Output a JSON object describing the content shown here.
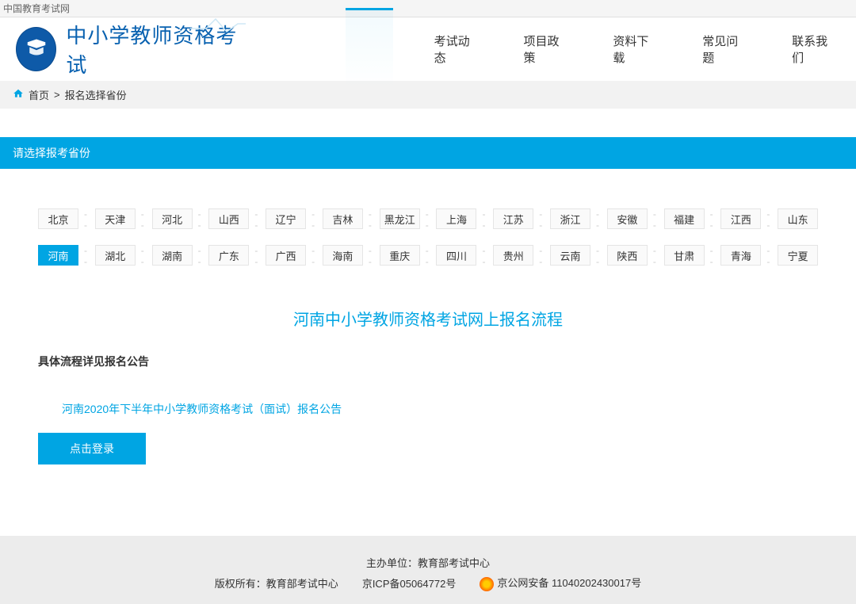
{
  "topbar": {
    "text": "中国教育考试网"
  },
  "header": {
    "site_title": "中小学教师资格考试",
    "nav": [
      "考试动态",
      "项目政策",
      "资料下载",
      "常见问题",
      "联系我们"
    ]
  },
  "breadcrumb": {
    "home": "首页",
    "sep": ">",
    "current": "报名选择省份"
  },
  "section": {
    "title": "请选择报考省份"
  },
  "provinces": {
    "row1": [
      "北京",
      "天津",
      "河北",
      "山西",
      "辽宁",
      "吉林",
      "黑龙江",
      "上海",
      "江苏",
      "浙江",
      "安徽",
      "福建",
      "江西",
      "山东"
    ],
    "row2": [
      "河南",
      "湖北",
      "湖南",
      "广东",
      "广西",
      "海南",
      "重庆",
      "四川",
      "贵州",
      "云南",
      "陕西",
      "甘肃",
      "青海",
      "宁夏"
    ],
    "selected": "河南"
  },
  "flow": {
    "title": "河南中小学教师资格考试网上报名流程",
    "note": "具体流程详见报名公告",
    "announcement": "河南2020年下半年中小学教师资格考试（面试）报名公告",
    "login_button": "点击登录"
  },
  "footer": {
    "sponsor_label": "主办单位：",
    "sponsor_value": "教育部考试中心",
    "copyright_label": "版权所有：",
    "copyright_value": "教育部考试中心",
    "icp": "京ICP备05064772号",
    "police": "京公网安备 11040202430017号"
  },
  "colors": {
    "primary": "#00a5e3",
    "logo_bg": "#0e5aa8",
    "title": "#0861b0"
  }
}
